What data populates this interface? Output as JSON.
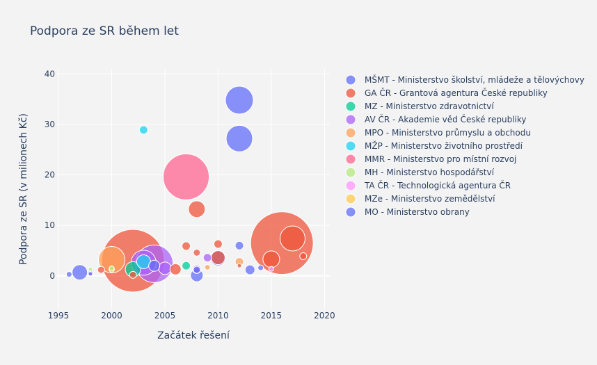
{
  "chart_data": {
    "type": "scatter",
    "title": "Podpora ze SR během let",
    "xlabel": "Začátek řešení",
    "ylabel": "Podpora ze SR (v milionech Kč)",
    "xlim": [
      1994.8,
      2020.5
    ],
    "ylim": [
      -6.5,
      41
    ],
    "x_ticks": [
      1995,
      2000,
      2005,
      2010,
      2015,
      2020
    ],
    "y_ticks": [
      0,
      10,
      20,
      30,
      40
    ],
    "grid": true,
    "legend_position": "right",
    "series": [
      {
        "name": "MŠMT - Ministerstvo školství, mládeže a tělovýchovy",
        "color": "#636efa",
        "points": [
          [
            1996,
            0.3,
            8
          ],
          [
            1997,
            0.7,
            22
          ],
          [
            1998,
            0.4,
            6
          ],
          [
            2008,
            0.1,
            18
          ],
          [
            2008,
            1.2,
            10
          ],
          [
            2010,
            3.5,
            22
          ],
          [
            2012,
            34.8,
            40
          ],
          [
            2012,
            27.2,
            38
          ],
          [
            2012,
            6.0,
            12
          ],
          [
            2013,
            1.2,
            14
          ],
          [
            2014,
            1.6,
            8
          ]
        ]
      },
      {
        "name": "GA ČR - Grantová agentura České republiky",
        "color": "#ef553b",
        "points": [
          [
            1999,
            1.2,
            10
          ],
          [
            2002,
            3.0,
            90
          ],
          [
            2002,
            0.2,
            10
          ],
          [
            2006,
            1.3,
            16
          ],
          [
            2007,
            5.9,
            12
          ],
          [
            2008,
            13.2,
            24
          ],
          [
            2008,
            4.6,
            10
          ],
          [
            2010,
            6.3,
            12
          ],
          [
            2010,
            3.6,
            20
          ],
          [
            2012,
            2.0,
            6
          ],
          [
            2015,
            3.3,
            24
          ],
          [
            2016,
            6.5,
            90
          ],
          [
            2017,
            7.4,
            36
          ],
          [
            2018,
            3.9,
            10
          ]
        ]
      },
      {
        "name": "MZ - Ministerstvo zdravotnictví",
        "color": "#00cc96",
        "points": [
          [
            2002,
            1.3,
            22
          ],
          [
            2007,
            2.0,
            12
          ]
        ]
      },
      {
        "name": "AV ČR - Akademie věd České republiky",
        "color": "#ab63fa",
        "points": [
          [
            2003,
            2.6,
            36
          ],
          [
            2004,
            2.4,
            54
          ],
          [
            2005,
            1.5,
            18
          ],
          [
            2009,
            3.6,
            12
          ],
          [
            1998,
            0.5,
            8
          ],
          [
            2008,
            1.3,
            12
          ]
        ]
      },
      {
        "name": "MPO - Ministerstvo průmyslu a obchodu",
        "color": "#ffa15a",
        "points": [
          [
            2012,
            2.8,
            12
          ],
          [
            2009,
            1.7,
            8
          ],
          [
            2000,
            3.2,
            38
          ]
        ]
      },
      {
        "name": "MŽP - Ministerstvo životního prostředí",
        "color": "#19d3f3",
        "points": [
          [
            2003,
            28.9,
            12
          ],
          [
            2003,
            2.8,
            20
          ]
        ]
      },
      {
        "name": "MMR - Ministerstvo pro místní rozvoj",
        "color": "#ff6692",
        "points": [
          [
            2007,
            19.6,
            66
          ]
        ]
      },
      {
        "name": "MH - Ministerstvo hospodářství",
        "color": "#b6e880",
        "points": [
          [
            1998,
            1.3,
            6
          ],
          [
            2000,
            1.5,
            7
          ]
        ]
      },
      {
        "name": "TA ČR - Technologická agentura ČR",
        "color": "#ff97ff",
        "points": [
          [
            2015,
            1.4,
            7
          ]
        ]
      },
      {
        "name": "MZe - Ministerstvo zemědělství",
        "color": "#fecb52",
        "points": [
          [
            2000,
            1.3,
            8
          ]
        ]
      },
      {
        "name": "MO - Ministerstvo obrany",
        "color": "#636efa",
        "points": [
          [
            2004,
            2.0,
            16
          ]
        ]
      }
    ]
  }
}
